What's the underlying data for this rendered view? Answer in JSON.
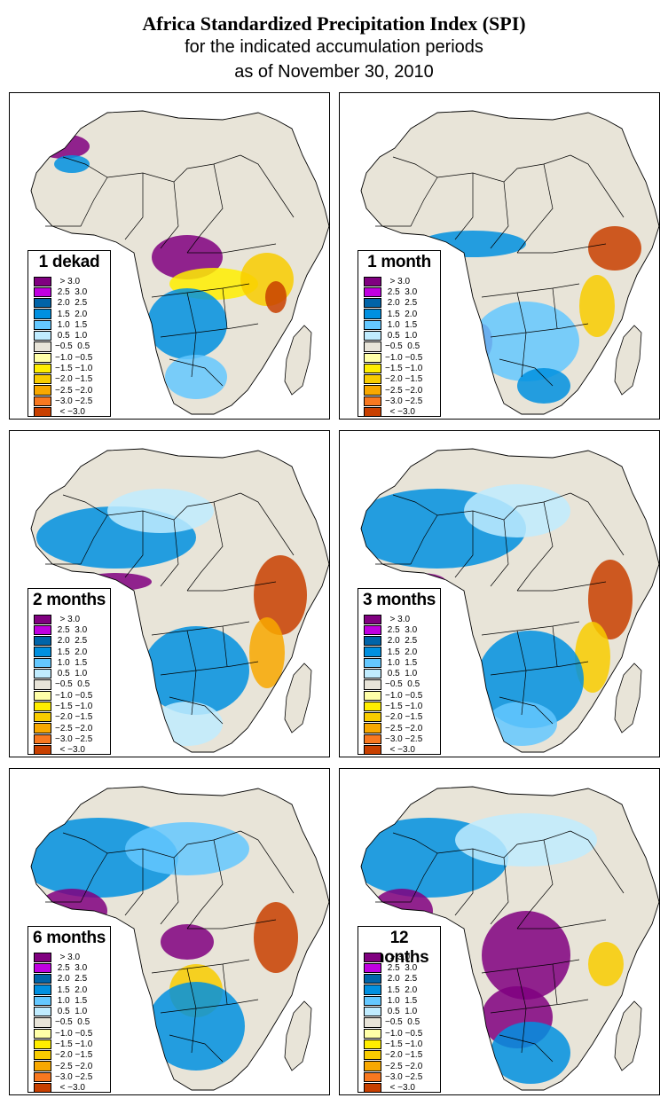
{
  "title": {
    "line1": "Africa Standardized Precipitation Index (SPI)",
    "line2": "for the indicated accumulation periods",
    "line3": "as of November 30, 2010"
  },
  "legend": [
    {
      "label": "  > 3.0",
      "color": "#800080"
    },
    {
      "label": " 2.5  3.0",
      "color": "#c000e0"
    },
    {
      "label": " 2.0  2.5",
      "color": "#0064a8"
    },
    {
      "label": " 1.5  2.0",
      "color": "#0090e0"
    },
    {
      "label": " 1.0  1.5",
      "color": "#64c8ff"
    },
    {
      "label": " 0.5  1.0",
      "color": "#c0ecff"
    },
    {
      "label": "−0.5  0.5",
      "color": "#e8e4d8"
    },
    {
      "label": "−1.0 −0.5",
      "color": "#ffffa8"
    },
    {
      "label": "−1.5 −1.0",
      "color": "#ffee00"
    },
    {
      "label": "−2.0 −1.5",
      "color": "#f8cc00"
    },
    {
      "label": "−2.5 −2.0",
      "color": "#f8a800"
    },
    {
      "label": "−3.0 −2.5",
      "color": "#f87820"
    },
    {
      "label": "  < −3.0",
      "color": "#c84000"
    }
  ],
  "colors": {
    "land": "#e8e4d8",
    "water": "#ffffff",
    "border": "#000000"
  },
  "panels": [
    {
      "label": "1 dekad"
    },
    {
      "label": "1 month"
    },
    {
      "label": "2 months"
    },
    {
      "label": "3 months"
    },
    {
      "label": "6 months"
    },
    {
      "label": "12 months"
    }
  ]
}
